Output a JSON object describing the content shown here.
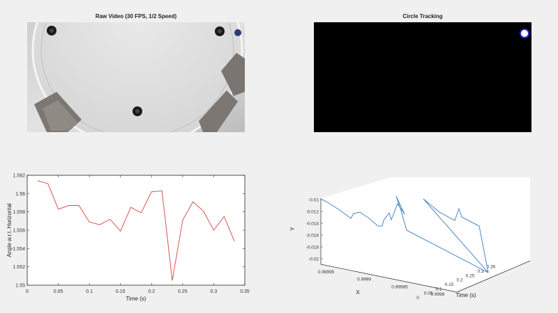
{
  "video_panel": {
    "title": "Raw Video (30 FPS, 1/2 Speed)"
  },
  "tracking_panel": {
    "title": "Circle Tracking",
    "background_color": "#000000",
    "marker_color": "#2b2bd6"
  },
  "chart_data": [
    {
      "type": "line",
      "title": "",
      "xlabel": "Time (s)",
      "ylabel": "Angle w.r.t. Horizontal",
      "xlim": [
        0,
        0.35
      ],
      "ylim": [
        1.55,
        1.562
      ],
      "xticks": [
        "0",
        "0.05",
        "0.1",
        "0.15",
        "0.2",
        "0.25",
        "0.3",
        "0.35"
      ],
      "yticks": [
        "1.55",
        "1.552",
        "1.554",
        "1.556",
        "1.558",
        "1.56",
        "1.562"
      ],
      "grid": false,
      "color": "#d9534f",
      "x": [
        0.0167,
        0.0333,
        0.05,
        0.0667,
        0.0833,
        0.1,
        0.1167,
        0.1333,
        0.15,
        0.1667,
        0.1833,
        0.2,
        0.2167,
        0.2333,
        0.25,
        0.2667,
        0.2833,
        0.3,
        0.3167,
        0.3333
      ],
      "y": [
        1.5614,
        1.5611,
        1.5583,
        1.5587,
        1.5587,
        1.5569,
        1.5566,
        1.5572,
        1.5559,
        1.5585,
        1.5579,
        1.5602,
        1.5603,
        1.5505,
        1.5571,
        1.5591,
        1.5581,
        1.556,
        1.5575,
        1.5548
      ]
    },
    {
      "type": "line",
      "title": "",
      "subtype": "3d",
      "xlabel": "X",
      "ylabel": "Y",
      "zlabel": "Time (s)",
      "x_tick_labels": [
        "0.99995",
        "0.9999",
        "0.99985",
        "0.9998"
      ],
      "y_tick_labels": [
        "-0.01",
        "-0.012",
        "-0.014",
        "-0.016",
        "-0.018",
        "-0.02"
      ],
      "time_tick_labels": [
        "0",
        "0.05",
        "0.1",
        "0.15",
        "0.2",
        "0.25",
        "0.3",
        "0.35"
      ],
      "grid": false,
      "color": "#4a86c5"
    }
  ]
}
